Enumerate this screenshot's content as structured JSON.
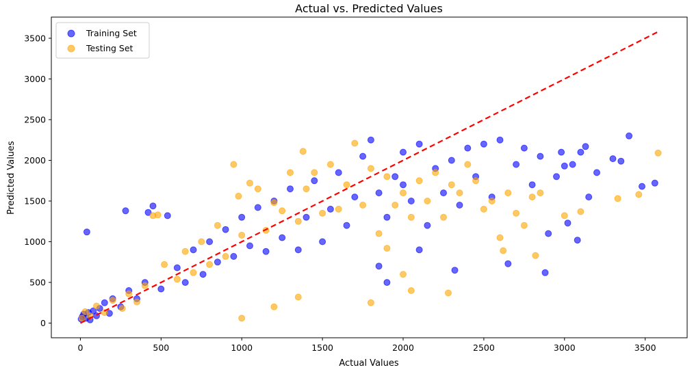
{
  "chart_data": {
    "type": "scatter",
    "title": "Actual vs. Predicted Values",
    "xlabel": "Actual Values",
    "ylabel": "Predicted Values",
    "xlim": [
      -180,
      3760
    ],
    "ylim": [
      -180,
      3760
    ],
    "xticks": [
      0,
      500,
      1000,
      1500,
      2000,
      2500,
      3000,
      3500
    ],
    "yticks": [
      0,
      500,
      1000,
      1500,
      2000,
      2500,
      3000,
      3500
    ],
    "grid": false,
    "legend_position": "top-left",
    "reference_line": {
      "from": [
        0,
        0
      ],
      "to": [
        3580,
        3580
      ],
      "color": "#ff0000",
      "style": "dashed"
    },
    "series": [
      {
        "name": "Training Set",
        "color": "#0000ff",
        "points": [
          [
            5,
            50
          ],
          [
            12,
            80
          ],
          [
            20,
            110
          ],
          [
            35,
            60
          ],
          [
            50,
            130
          ],
          [
            40,
            1120
          ],
          [
            60,
            40
          ],
          [
            80,
            150
          ],
          [
            100,
            90
          ],
          [
            120,
            180
          ],
          [
            150,
            250
          ],
          [
            180,
            120
          ],
          [
            200,
            300
          ],
          [
            250,
            200
          ],
          [
            280,
            1380
          ],
          [
            300,
            400
          ],
          [
            350,
            300
          ],
          [
            400,
            500
          ],
          [
            420,
            1360
          ],
          [
            450,
            1440
          ],
          [
            500,
            420
          ],
          [
            540,
            1320
          ],
          [
            600,
            680
          ],
          [
            650,
            500
          ],
          [
            700,
            900
          ],
          [
            760,
            600
          ],
          [
            800,
            1000
          ],
          [
            850,
            750
          ],
          [
            900,
            1150
          ],
          [
            950,
            820
          ],
          [
            1000,
            1300
          ],
          [
            1050,
            950
          ],
          [
            1100,
            1420
          ],
          [
            1150,
            880
          ],
          [
            1200,
            1500
          ],
          [
            1250,
            1050
          ],
          [
            1300,
            1650
          ],
          [
            1350,
            900
          ],
          [
            1400,
            1300
          ],
          [
            1450,
            1750
          ],
          [
            1500,
            1000
          ],
          [
            1550,
            1400
          ],
          [
            1600,
            1850
          ],
          [
            1650,
            1200
          ],
          [
            1700,
            1550
          ],
          [
            1750,
            2050
          ],
          [
            1800,
            2250
          ],
          [
            1850,
            1600
          ],
          [
            1900,
            1300
          ],
          [
            1950,
            1800
          ],
          [
            2000,
            2100
          ],
          [
            2050,
            1500
          ],
          [
            2100,
            2200
          ],
          [
            2150,
            1200
          ],
          [
            2200,
            1900
          ],
          [
            2250,
            1600
          ],
          [
            2300,
            2000
          ],
          [
            2320,
            650
          ],
          [
            2350,
            1450
          ],
          [
            2400,
            2150
          ],
          [
            2450,
            1800
          ],
          [
            2500,
            2200
          ],
          [
            2550,
            1550
          ],
          [
            2600,
            2250
          ],
          [
            2650,
            730
          ],
          [
            2700,
            1950
          ],
          [
            2750,
            2150
          ],
          [
            2800,
            1700
          ],
          [
            2850,
            2050
          ],
          [
            2880,
            620
          ],
          [
            2900,
            1100
          ],
          [
            2950,
            1800
          ],
          [
            2980,
            2100
          ],
          [
            3000,
            1930
          ],
          [
            3020,
            1230
          ],
          [
            3050,
            1950
          ],
          [
            3080,
            1020
          ],
          [
            3100,
            2100
          ],
          [
            3130,
            2170
          ],
          [
            3150,
            1550
          ],
          [
            3200,
            1850
          ],
          [
            3300,
            2020
          ],
          [
            3350,
            1990
          ],
          [
            3400,
            2300
          ],
          [
            3480,
            1680
          ],
          [
            3560,
            1720
          ],
          [
            1850,
            700
          ],
          [
            1900,
            500
          ],
          [
            2000,
            1700
          ],
          [
            2100,
            900
          ]
        ]
      },
      {
        "name": "Testing Set",
        "color": "#ffa500",
        "points": [
          [
            10,
            60
          ],
          [
            30,
            140
          ],
          [
            60,
            90
          ],
          [
            100,
            210
          ],
          [
            150,
            130
          ],
          [
            200,
            280
          ],
          [
            260,
            180
          ],
          [
            300,
            360
          ],
          [
            350,
            260
          ],
          [
            400,
            460
          ],
          [
            450,
            1320
          ],
          [
            480,
            1330
          ],
          [
            520,
            720
          ],
          [
            600,
            540
          ],
          [
            650,
            880
          ],
          [
            700,
            620
          ],
          [
            750,
            1000
          ],
          [
            800,
            720
          ],
          [
            850,
            1200
          ],
          [
            900,
            820
          ],
          [
            950,
            1950
          ],
          [
            980,
            1560
          ],
          [
            1000,
            1080
          ],
          [
            1050,
            1720
          ],
          [
            1100,
            1650
          ],
          [
            1150,
            1140
          ],
          [
            1200,
            1480
          ],
          [
            1250,
            1380
          ],
          [
            1300,
            1850
          ],
          [
            1350,
            1250
          ],
          [
            1380,
            2110
          ],
          [
            1400,
            1650
          ],
          [
            1450,
            1850
          ],
          [
            1500,
            1350
          ],
          [
            1550,
            1950
          ],
          [
            1600,
            1400
          ],
          [
            1650,
            1700
          ],
          [
            1700,
            2210
          ],
          [
            1750,
            1450
          ],
          [
            1800,
            1900
          ],
          [
            1850,
            1100
          ],
          [
            1900,
            1800
          ],
          [
            1950,
            1450
          ],
          [
            2000,
            1600
          ],
          [
            2050,
            1300
          ],
          [
            2100,
            1750
          ],
          [
            2150,
            1500
          ],
          [
            2200,
            1850
          ],
          [
            2250,
            1300
          ],
          [
            2280,
            370
          ],
          [
            2300,
            1700
          ],
          [
            2350,
            1600
          ],
          [
            2400,
            1950
          ],
          [
            2450,
            1750
          ],
          [
            2500,
            1400
          ],
          [
            2550,
            1500
          ],
          [
            2600,
            1050
          ],
          [
            2620,
            890
          ],
          [
            2650,
            1600
          ],
          [
            2700,
            1350
          ],
          [
            2750,
            1200
          ],
          [
            2800,
            1550
          ],
          [
            2820,
            830
          ],
          [
            2850,
            1600
          ],
          [
            3000,
            1320
          ],
          [
            3100,
            1370
          ],
          [
            3330,
            1530
          ],
          [
            3460,
            1580
          ],
          [
            3580,
            2090
          ],
          [
            1800,
            250
          ],
          [
            1900,
            920
          ],
          [
            2000,
            600
          ],
          [
            2050,
            400
          ],
          [
            1350,
            320
          ],
          [
            1200,
            200
          ],
          [
            1000,
            60
          ]
        ]
      }
    ]
  }
}
